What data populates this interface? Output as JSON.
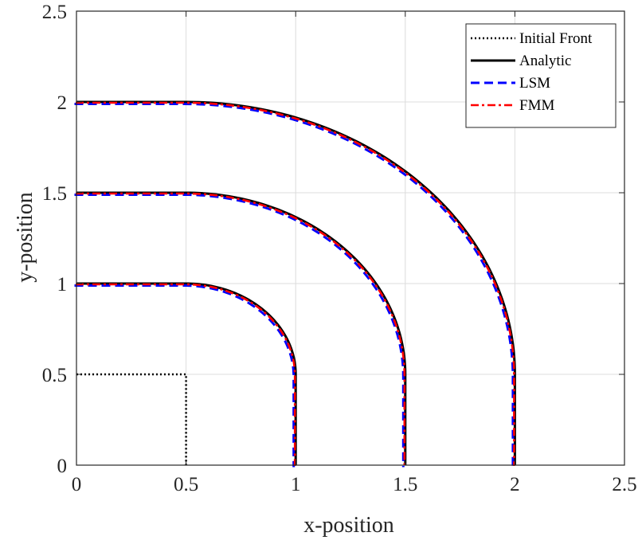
{
  "chart_data": {
    "type": "line",
    "title": "",
    "xlabel": "x-position",
    "ylabel": "y-position",
    "xlim": [
      0,
      2.5
    ],
    "ylim": [
      0,
      2.5
    ],
    "xticks": [
      "0",
      "0.5",
      "1",
      "1.5",
      "2",
      "2.5"
    ],
    "yticks": [
      "0",
      "0.5",
      "1",
      "1.5",
      "2",
      "2.5"
    ],
    "grid": true,
    "legend_position": "top-right",
    "legend": [
      {
        "label": "Initial Front",
        "color": "#000000",
        "style": "dotted"
      },
      {
        "label": "Analytic",
        "color": "#000000",
        "style": "solid"
      },
      {
        "label": "LSM",
        "color": "#0000ff",
        "style": "dashed"
      },
      {
        "label": "FMM",
        "color": "#ff0000",
        "style": "dashdot"
      }
    ],
    "series": [
      {
        "name": "Initial Front",
        "curves": [
          {
            "x": [
              0,
              0.5,
              0.5
            ],
            "y": [
              0.5,
              0.5,
              0
            ]
          }
        ]
      },
      {
        "name": "Analytic",
        "curves": [
          {
            "center": [
              0.5,
              0.5
            ],
            "radius": 0.5,
            "x_start": 0,
            "y_start": 0
          },
          {
            "center": [
              0.5,
              0.5
            ],
            "radius": 1.0,
            "x_start": 0,
            "y_start": 0
          },
          {
            "center": [
              0.5,
              0.5
            ],
            "radius": 1.5,
            "x_start": 0,
            "y_start": 0
          }
        ]
      },
      {
        "name": "LSM",
        "curves": [
          {
            "center": [
              0.5,
              0.5
            ],
            "radius": 0.5,
            "x_start": 0,
            "y_start": 0
          },
          {
            "center": [
              0.5,
              0.5
            ],
            "radius": 1.0,
            "x_start": 0,
            "y_start": 0
          },
          {
            "center": [
              0.5,
              0.5
            ],
            "radius": 1.5,
            "x_start": 0,
            "y_start": 0
          }
        ]
      },
      {
        "name": "FMM",
        "curves": [
          {
            "center": [
              0.5,
              0.5
            ],
            "radius": 0.5,
            "x_start": 0,
            "y_start": 0
          },
          {
            "center": [
              0.5,
              0.5
            ],
            "radius": 1.0,
            "x_start": 0,
            "y_start": 0
          },
          {
            "center": [
              0.5,
              0.5
            ],
            "radius": 1.5,
            "x_start": 0,
            "y_start": 0
          }
        ]
      }
    ]
  }
}
